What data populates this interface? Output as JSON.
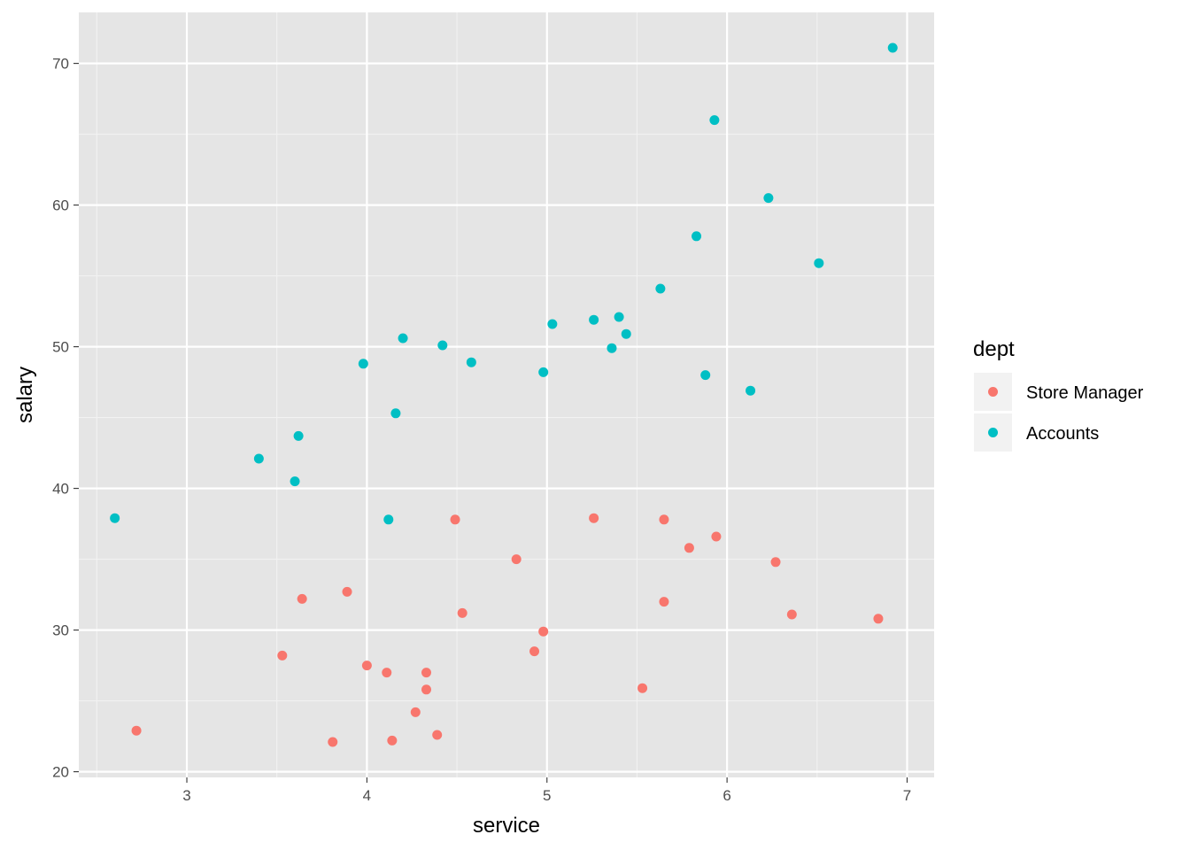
{
  "chart_data": {
    "type": "scatter",
    "xlabel": "service",
    "ylabel": "salary",
    "xlim": [
      2.4,
      7.15
    ],
    "ylim": [
      19.6,
      73.6
    ],
    "xticks": [
      3,
      4,
      5,
      6,
      7
    ],
    "yticks": [
      20,
      30,
      40,
      50,
      60,
      70
    ],
    "grid": true,
    "legend": {
      "title": "dept",
      "placement": "right"
    },
    "series": [
      {
        "name": "Store Manager",
        "color": "#F8766D",
        "points": [
          [
            2.72,
            22.9
          ],
          [
            3.53,
            28.2
          ],
          [
            3.64,
            32.2
          ],
          [
            3.81,
            22.1
          ],
          [
            3.89,
            32.7
          ],
          [
            4.0,
            27.5
          ],
          [
            4.11,
            27.0
          ],
          [
            4.14,
            22.2
          ],
          [
            4.27,
            24.2
          ],
          [
            4.33,
            27.0
          ],
          [
            4.33,
            25.8
          ],
          [
            4.39,
            22.6
          ],
          [
            4.49,
            37.8
          ],
          [
            4.53,
            31.2
          ],
          [
            4.83,
            35.0
          ],
          [
            4.93,
            28.5
          ],
          [
            4.98,
            29.9
          ],
          [
            5.26,
            37.9
          ],
          [
            5.53,
            25.9
          ],
          [
            5.65,
            37.8
          ],
          [
            5.65,
            32.0
          ],
          [
            5.79,
            35.8
          ],
          [
            5.94,
            36.6
          ],
          [
            6.27,
            34.8
          ],
          [
            6.36,
            31.1
          ],
          [
            6.84,
            30.8
          ]
        ]
      },
      {
        "name": "Accounts",
        "color": "#00BFC4",
        "points": [
          [
            2.6,
            37.9
          ],
          [
            3.4,
            42.1
          ],
          [
            3.6,
            40.5
          ],
          [
            3.62,
            43.7
          ],
          [
            3.98,
            48.8
          ],
          [
            4.12,
            37.8
          ],
          [
            4.16,
            45.3
          ],
          [
            4.2,
            50.6
          ],
          [
            4.42,
            50.1
          ],
          [
            4.58,
            48.9
          ],
          [
            4.98,
            48.2
          ],
          [
            5.03,
            51.6
          ],
          [
            5.26,
            51.9
          ],
          [
            5.36,
            49.9
          ],
          [
            5.4,
            52.1
          ],
          [
            5.44,
            50.9
          ],
          [
            5.63,
            54.1
          ],
          [
            5.83,
            57.8
          ],
          [
            5.88,
            48.0
          ],
          [
            5.93,
            66.0
          ],
          [
            6.13,
            46.9
          ],
          [
            6.23,
            60.5
          ],
          [
            6.51,
            55.9
          ],
          [
            6.92,
            71.1
          ]
        ]
      }
    ]
  }
}
